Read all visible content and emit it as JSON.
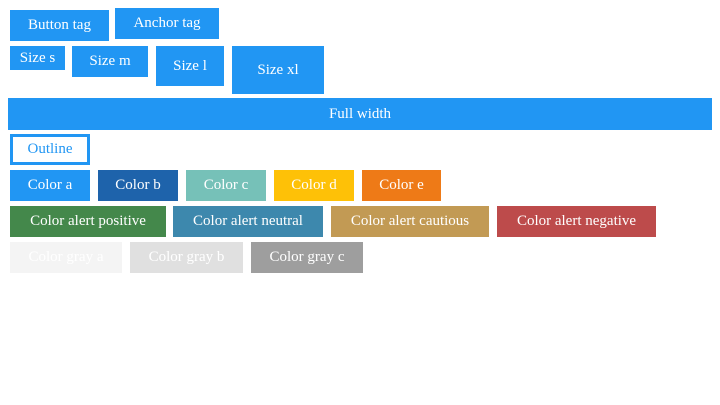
{
  "buttons": {
    "button_tag": "Button tag",
    "anchor_tag": "Anchor tag",
    "size_s": "Size s",
    "size_m": "Size m",
    "size_l": "Size l",
    "size_xl": "Size xl",
    "full_width": "Full width",
    "outline": "Outline",
    "color_a": "Color a",
    "color_b": "Color b",
    "color_c": "Color c",
    "color_d": "Color d",
    "color_e": "Color e",
    "alert_positive": "Color alert positive",
    "alert_neutral": "Color alert neutral",
    "alert_cautious": "Color alert cautious",
    "alert_negative": "Color alert negative",
    "gray_a": "Color gray a",
    "gray_b": "Color gray b",
    "gray_c": "Color gray c"
  },
  "colors": {
    "primary": "#2196f3",
    "color_a": "#2196f3",
    "color_b": "#1e63ab",
    "color_c": "#76c1b8",
    "color_d": "#fec107",
    "color_e": "#ee7a17",
    "alert_positive": "#44884b",
    "alert_neutral": "#3d88ad",
    "alert_cautious": "#c29a54",
    "alert_negative": "#bd4b4b",
    "gray_a": "#f4f4f4",
    "gray_b": "#e0e0e0",
    "gray_c": "#9e9e9e",
    "white": "#ffffff"
  }
}
